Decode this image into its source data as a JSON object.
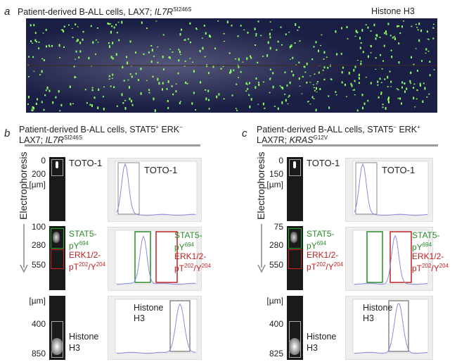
{
  "panel_a": {
    "label": "a",
    "title": "Patient-derived B-ALL cells, LAX7; ",
    "gene": "IL7R",
    "mutation": "SI246S",
    "stain": "Histone H3"
  },
  "panel_b": {
    "label": "b",
    "title_line1": "Patient-derived B-ALL cells, STAT5",
    "t1sup1": "+",
    "t1mid": " ERK",
    "t1sup2": "−",
    "title_line2": "LAX7; ",
    "gene": "IL7R",
    "mutation": "SI246S",
    "axis_label": "Electrophoresis",
    "toto_ticks": [
      "0",
      "200",
      "[µm]"
    ],
    "stat_ticks": [
      "100",
      "280",
      "550"
    ],
    "histone_ticks": [
      "[µm]",
      "400",
      "850"
    ]
  },
  "panel_c": {
    "label": "c",
    "title_line1": "Patient-derived B-ALL cells, STAT5",
    "t1sup1": "−",
    "t1mid": " ERK",
    "t1sup2": "+",
    "title_line2": "LAX7R; ",
    "gene": "KRAS",
    "mutation": "G12V",
    "axis_label": "Electrophoresis",
    "toto_ticks": [
      "0",
      "150",
      "[µm]"
    ],
    "stat_ticks": [
      "75",
      "280",
      "550"
    ],
    "histone_ticks": [
      "[µm]",
      "400",
      "825"
    ]
  },
  "labels": {
    "toto": "TOTO-1",
    "stat5": "STAT5-",
    "stat5_p": "pY",
    "stat5_site": "694",
    "erk": "ERK1/2-",
    "erk_p": "pT",
    "erk_site1": "202",
    "erk_mid": "/Y",
    "erk_site2": "204",
    "histone1": "Histone",
    "histone2": "H3"
  },
  "colors": {
    "stat5": "#2a8a2a",
    "erk": "#c02020",
    "trace": "#8a8ae0",
    "gel_bg": "#1c1f45",
    "spot": "#8cff60"
  }
}
